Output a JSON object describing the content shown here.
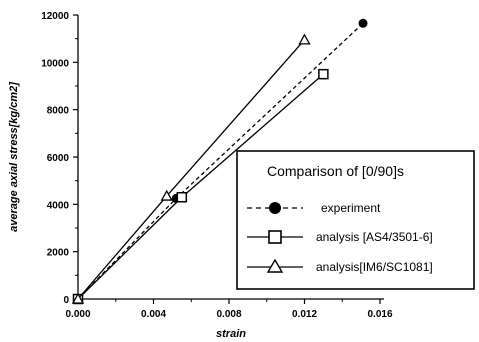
{
  "chart_data": {
    "type": "line",
    "xlabel": "strain",
    "ylabel": "average axial stress[kg/cm2]",
    "xlim": [
      0,
      0.016
    ],
    "ylim": [
      0,
      12000
    ],
    "x_ticks": [
      "0.000",
      "0.004",
      "0.008",
      "0.012",
      "0.016"
    ],
    "y_ticks": [
      "0",
      "2000",
      "4000",
      "6000",
      "8000",
      "10000",
      "12000"
    ],
    "grid": false,
    "legend": {
      "title": "Comparison of [0/90]s",
      "position": "bottom-right"
    },
    "series": [
      {
        "name": "experiment",
        "line_style": "dashed",
        "marker": "filled-circle",
        "x": [
          0,
          0.0052,
          0.0151
        ],
        "y": [
          0,
          4250,
          11650
        ]
      },
      {
        "name": "analysis [AS4/3501-6]",
        "line_style": "solid",
        "marker": "open-square",
        "x": [
          0,
          0.0055,
          0.013
        ],
        "y": [
          0,
          4300,
          9500
        ]
      },
      {
        "name": "analysis[IM6/SC1081]",
        "line_style": "solid",
        "marker": "open-triangle",
        "x": [
          0,
          0.0047,
          0.012
        ],
        "y": [
          0,
          4350,
          10950
        ]
      }
    ]
  }
}
